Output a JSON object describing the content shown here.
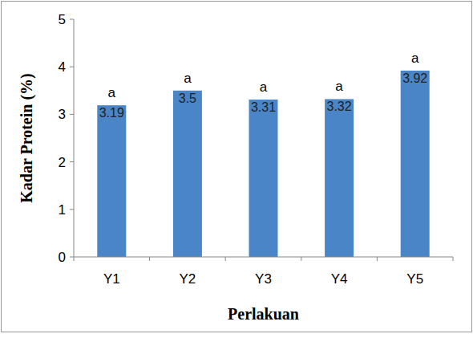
{
  "chart_data": {
    "type": "bar",
    "x_label": "Perlakuan",
    "y_label": "Kadar Protein (%)",
    "categories": [
      "Y1",
      "Y2",
      "Y3",
      "Y4",
      "Y5"
    ],
    "values": [
      3.19,
      3.5,
      3.31,
      3.32,
      3.92
    ],
    "annotations": [
      "a",
      "a",
      "a",
      "a",
      "a"
    ],
    "color": "#4a85c7",
    "ylim": [
      0,
      5
    ],
    "yticks": [
      0,
      1,
      2,
      3,
      4,
      5
    ],
    "grid": false,
    "data_labels": true
  }
}
